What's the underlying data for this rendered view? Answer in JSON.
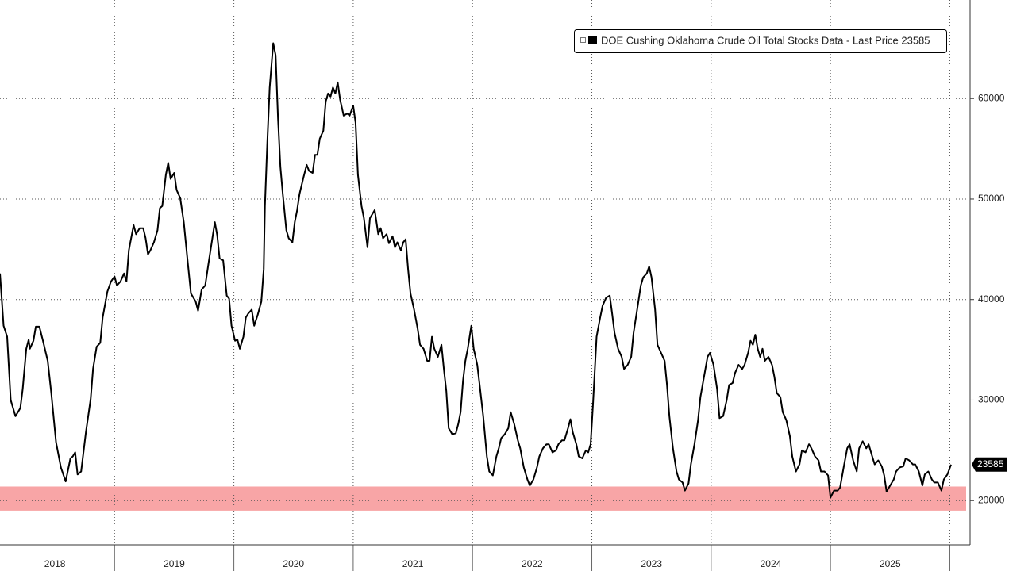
{
  "chart_data": {
    "type": "line",
    "x": [
      2018.04,
      2018.07,
      2018.1,
      2018.13,
      2018.17,
      2018.21,
      2018.23,
      2018.26,
      2018.28,
      2018.29,
      2018.32,
      2018.34,
      2018.37,
      2018.4,
      2018.44,
      2018.47,
      2018.51,
      2018.55,
      2018.59,
      2018.63,
      2018.65,
      2018.67,
      2018.69,
      2018.72,
      2018.76,
      2018.8,
      2018.82,
      2018.85,
      2018.88,
      2018.9,
      2018.94,
      2018.97,
      2019.0,
      2019.02,
      2019.05,
      2019.08,
      2019.1,
      2019.12,
      2019.16,
      2019.18,
      2019.21,
      2019.24,
      2019.26,
      2019.28,
      2019.3,
      2019.33,
      2019.36,
      2019.38,
      2019.4,
      2019.43,
      2019.45,
      2019.47,
      2019.5,
      2019.52,
      2019.55,
      2019.58,
      2019.61,
      2019.64,
      2019.68,
      2019.7,
      2019.73,
      2019.76,
      2019.79,
      2019.82,
      2019.84,
      2019.86,
      2019.88,
      2019.91,
      2019.94,
      2019.96,
      2019.98,
      2020.01,
      2020.03,
      2020.05,
      2020.08,
      2020.1,
      2020.12,
      2020.15,
      2020.17,
      2020.2,
      2020.23,
      2020.25,
      2020.26,
      2020.28,
      2020.3,
      2020.33,
      2020.35,
      2020.37,
      2020.39,
      2020.41,
      2020.44,
      2020.46,
      2020.49,
      2020.51,
      2020.53,
      2020.55,
      2020.58,
      2020.61,
      2020.63,
      2020.66,
      2020.68,
      2020.7,
      2020.72,
      2020.75,
      2020.77,
      2020.79,
      2020.81,
      2020.83,
      2020.85,
      2020.87,
      2020.89,
      2020.92,
      2020.95,
      2020.97,
      2021.0,
      2021.02,
      2021.04,
      2021.07,
      2021.09,
      2021.12,
      2021.14,
      2021.16,
      2021.18,
      2021.21,
      2021.23,
      2021.25,
      2021.28,
      2021.3,
      2021.33,
      2021.35,
      2021.37,
      2021.4,
      2021.42,
      2021.44,
      2021.46,
      2021.48,
      2021.51,
      2021.54,
      2021.56,
      2021.59,
      2021.62,
      2021.64,
      2021.66,
      2021.68,
      2021.71,
      2021.74,
      2021.76,
      2021.78,
      2021.8,
      2021.83,
      2021.86,
      2021.88,
      2021.9,
      2021.92,
      2021.94,
      2021.96,
      2021.99,
      2022.01,
      2022.04,
      2022.06,
      2022.09,
      2022.12,
      2022.14,
      2022.17,
      2022.2,
      2022.22,
      2022.24,
      2022.27,
      2022.3,
      2022.32,
      2022.35,
      2022.38,
      2022.4,
      2022.43,
      2022.46,
      2022.48,
      2022.51,
      2022.54,
      2022.56,
      2022.59,
      2022.62,
      2022.64,
      2022.67,
      2022.7,
      2022.72,
      2022.75,
      2022.77,
      2022.8,
      2022.82,
      2022.84,
      2022.87,
      2022.89,
      2022.92,
      2022.95,
      2022.97,
      2022.99,
      2023.01,
      2023.04,
      2023.07,
      2023.09,
      2023.12,
      2023.15,
      2023.17,
      2023.19,
      2023.22,
      2023.25,
      2023.27,
      2023.3,
      2023.33,
      2023.35,
      2023.38,
      2023.41,
      2023.43,
      2023.46,
      2023.48,
      2023.5,
      2023.53,
      2023.55,
      2023.58,
      2023.61,
      2023.63,
      2023.65,
      2023.68,
      2023.71,
      2023.73,
      2023.76,
      2023.78,
      2023.81,
      2023.83,
      2023.86,
      2023.89,
      2023.91,
      2023.94,
      2023.97,
      2023.99,
      2024.02,
      2024.05,
      2024.07,
      2024.1,
      2024.13,
      2024.15,
      2024.18,
      2024.2,
      2024.23,
      2024.26,
      2024.28,
      2024.31,
      2024.33,
      2024.35,
      2024.37,
      2024.39,
      2024.41,
      2024.43,
      2024.45,
      2024.48,
      2024.51,
      2024.53,
      2024.55,
      2024.58,
      2024.6,
      2024.63,
      2024.66,
      2024.68,
      2024.71,
      2024.74,
      2024.76,
      2024.79,
      2024.82,
      2024.84,
      2024.87,
      2024.9,
      2024.92,
      2024.95,
      2024.98,
      2025.0,
      2025.03,
      2025.06,
      2025.08,
      2025.11,
      2025.14,
      2025.16,
      2025.19,
      2025.22,
      2025.24,
      2025.27,
      2025.3,
      2025.32,
      2025.35,
      2025.37,
      2025.4,
      2025.43,
      2025.45,
      2025.47,
      2025.5,
      2025.53,
      2025.55,
      2025.58,
      2025.61,
      2025.63,
      2025.66,
      2025.69,
      2025.71,
      2025.74,
      2025.77,
      2025.79,
      2025.82,
      2025.85,
      2025.87,
      2025.9,
      2025.93,
      2025.95,
      2025.98,
      2026.01
    ],
    "series": [
      {
        "name": "DOE Cushing Oklahoma Crude Oil Total Stocks Data - Last Price 23585",
        "color": "#000000",
        "values": [
          42600,
          37400,
          36300,
          30000,
          28400,
          29200,
          31100,
          35100,
          36000,
          35100,
          35900,
          37300,
          37300,
          35900,
          33900,
          30700,
          25800,
          23300,
          21900,
          24200,
          24400,
          24800,
          22600,
          22900,
          26800,
          30100,
          33100,
          35300,
          35700,
          38200,
          40800,
          41800,
          42300,
          41400,
          41800,
          42600,
          41800,
          44900,
          47400,
          46500,
          47100,
          47100,
          46100,
          44500,
          44900,
          45700,
          46900,
          49100,
          49300,
          52400,
          53600,
          52000,
          52600,
          50900,
          50100,
          47700,
          44100,
          40600,
          39800,
          38900,
          41000,
          41400,
          43800,
          46100,
          47700,
          46400,
          44100,
          43900,
          40400,
          40100,
          37400,
          35900,
          36000,
          35100,
          36300,
          38200,
          38600,
          39000,
          37400,
          38500,
          39800,
          43000,
          49300,
          55600,
          61100,
          65500,
          64300,
          58000,
          53200,
          50500,
          46900,
          46100,
          45700,
          47700,
          48900,
          50500,
          52000,
          53400,
          52800,
          52600,
          54400,
          54400,
          56000,
          56800,
          59700,
          60500,
          60200,
          61100,
          60500,
          61600,
          59900,
          58300,
          58500,
          58300,
          59300,
          57600,
          52400,
          49300,
          48100,
          45200,
          48100,
          48500,
          48900,
          46500,
          47100,
          46100,
          46500,
          45600,
          46300,
          45200,
          45700,
          44900,
          45700,
          46000,
          43000,
          40600,
          39000,
          37100,
          35500,
          35100,
          33900,
          33900,
          36300,
          35100,
          34300,
          35500,
          33100,
          30900,
          27200,
          26600,
          26700,
          27600,
          28800,
          31900,
          33900,
          35100,
          37400,
          35100,
          33500,
          31500,
          28400,
          24400,
          22900,
          22500,
          24400,
          25200,
          26200,
          26600,
          27200,
          28800,
          27600,
          26000,
          25200,
          23300,
          22100,
          21500,
          22100,
          23300,
          24400,
          25200,
          25600,
          25600,
          24800,
          25000,
          25600,
          26000,
          26000,
          27200,
          28100,
          26800,
          25600,
          24400,
          24200,
          25000,
          24800,
          25600,
          29600,
          36300,
          38200,
          39400,
          40200,
          40400,
          38600,
          36700,
          35100,
          34300,
          33100,
          33500,
          34300,
          36700,
          39000,
          41400,
          42200,
          42600,
          43300,
          42200,
          39000,
          35500,
          34700,
          33900,
          31500,
          28400,
          25200,
          22900,
          22100,
          21800,
          21000,
          21700,
          23600,
          25600,
          28000,
          30300,
          32300,
          34300,
          34700,
          33500,
          31100,
          28200,
          28400,
          30000,
          31500,
          31700,
          32700,
          33500,
          33100,
          33500,
          34700,
          35900,
          35500,
          36500,
          35100,
          34300,
          35100,
          33900,
          34300,
          33500,
          32300,
          30700,
          30300,
          28800,
          28000,
          26400,
          24400,
          22900,
          23600,
          25000,
          24800,
          25600,
          25200,
          24400,
          24000,
          22900,
          22900,
          22500,
          20300,
          21000,
          21000,
          21300,
          23300,
          25200,
          25600,
          24000,
          22900,
          25200,
          25900,
          25200,
          25600,
          24400,
          23600,
          24000,
          23400,
          22500,
          20900,
          21500,
          22100,
          22900,
          23300,
          23400,
          24200,
          24000,
          23600,
          23600,
          22900,
          21500,
          22600,
          22900,
          22100,
          21800,
          21800,
          21000,
          22100,
          22600,
          23585
        ]
      }
    ],
    "xlim": [
      2018.04,
      2026.17
    ],
    "ylim": [
      15600,
      69800
    ],
    "yticks": [
      20000,
      30000,
      40000,
      50000,
      60000
    ],
    "xticks": [
      {
        "value": 2018.5,
        "label": "2018"
      },
      {
        "value": 2019.5,
        "label": "2019"
      },
      {
        "value": 2020.5,
        "label": "2020"
      },
      {
        "value": 2021.5,
        "label": "2021"
      },
      {
        "value": 2022.5,
        "label": "2022"
      },
      {
        "value": 2023.5,
        "label": "2023"
      },
      {
        "value": 2024.5,
        "label": "2024"
      },
      {
        "value": 2025.5,
        "label": "2025"
      }
    ],
    "year_separators": [
      2019,
      2020,
      2021,
      2022,
      2023,
      2024,
      2025,
      2026
    ],
    "band": {
      "from": 19000,
      "to": 21400,
      "color": "#f8a5a6"
    },
    "grid": true
  }
}
